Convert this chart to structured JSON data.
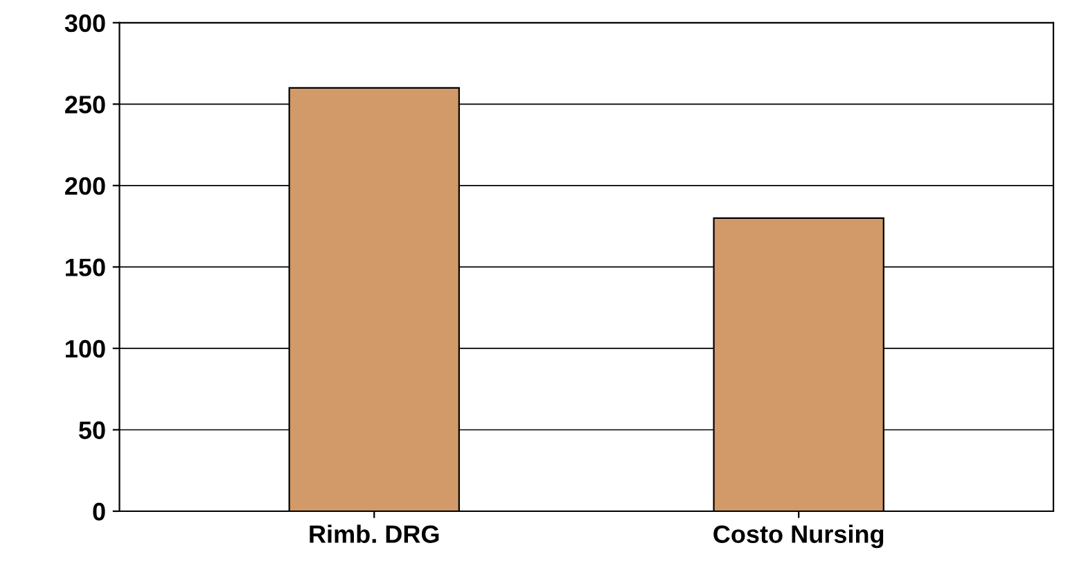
{
  "chart_data": {
    "type": "bar",
    "categories": [
      "Rimb. DRG",
      "Costo Nursing"
    ],
    "values": [
      260,
      180
    ],
    "color": "#d19a68",
    "ylim": [
      0,
      300
    ],
    "yticks": [
      0,
      50,
      100,
      150,
      200,
      250,
      300
    ],
    "grid": "y"
  }
}
